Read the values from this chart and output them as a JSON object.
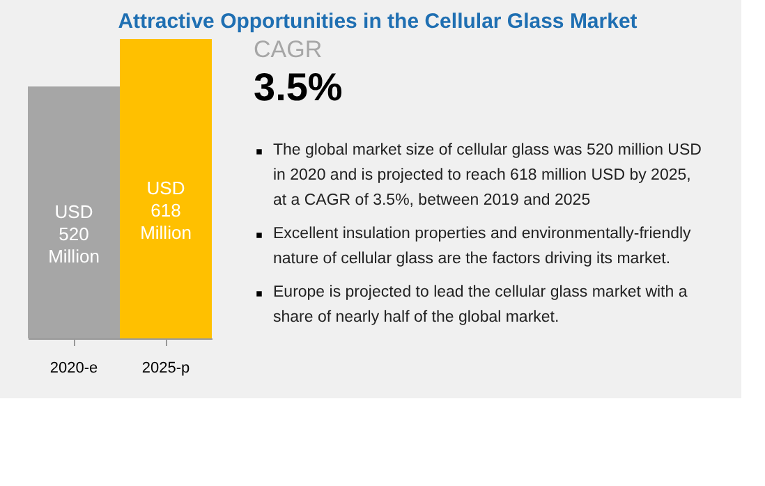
{
  "chart_data": {
    "type": "bar",
    "title": "Attractive Opportunities in the Cellular Glass Market",
    "categories": [
      "2020-e",
      "2025-p"
    ],
    "values": [
      520,
      618
    ],
    "colors": [
      "#a6a6a6",
      "#ffc000"
    ],
    "value_labels": [
      "USD 520 Million",
      "USD 618 Million"
    ],
    "grid": false,
    "tick_labels": "x",
    "annotations": [
      "CAGR",
      "3.5%",
      "The global market size of cellular glass was 520 million USD in 2020 and is projected to reach 618 million USD by 2025, at a CAGR of 3.5%, between 2019 and 2025",
      "Excellent insulation properties and environmentally-friendly nature of cellular glass are the factors driving its market.",
      "Europe is projected to lead the cellular glass market with a share of nearly half of the global market."
    ]
  }
}
